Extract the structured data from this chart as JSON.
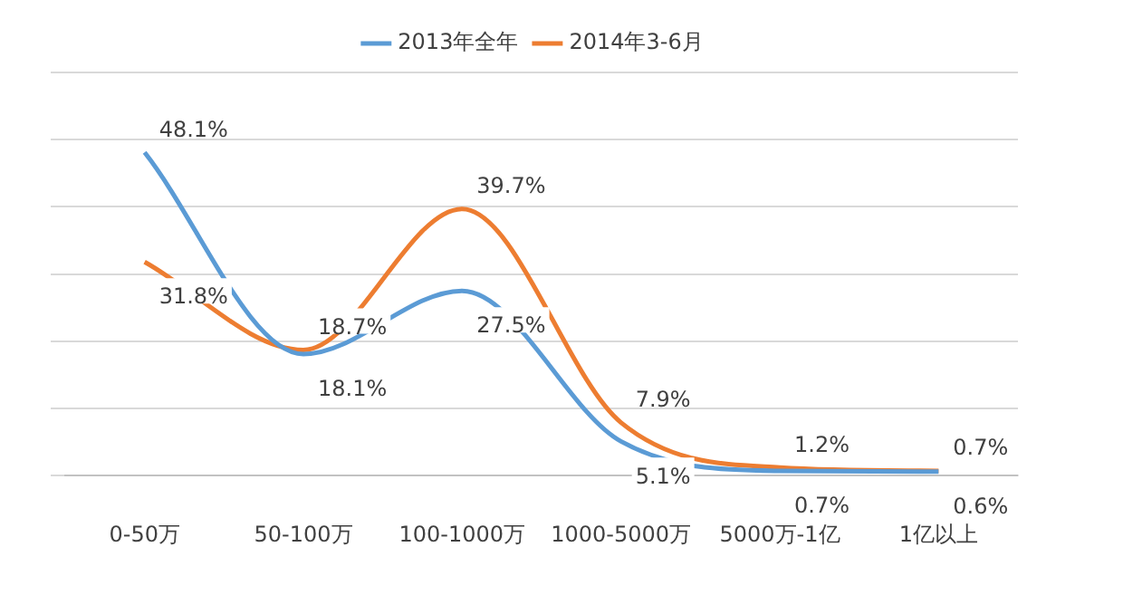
{
  "chart_data": {
    "type": "line",
    "categories": [
      "0-50万",
      "50-100万",
      "100-1000万",
      "1000-5000万",
      "5000万-1亿",
      "1亿以上"
    ],
    "series": [
      {
        "name": "2013年全年",
        "color": "#5b9bd5",
        "values": [
          48.1,
          18.1,
          27.5,
          5.1,
          0.7,
          0.6
        ],
        "value_labels": [
          "48.1%",
          "18.1%",
          "27.5%",
          "5.1%",
          "0.7%",
          "0.6%"
        ]
      },
      {
        "name": "2014年3-6月",
        "color": "#ed7d31",
        "values": [
          31.8,
          18.7,
          39.7,
          7.9,
          1.2,
          0.7
        ],
        "value_labels": [
          "31.8%",
          "18.7%",
          "39.7%",
          "7.9%",
          "1.2%",
          "0.7%"
        ]
      }
    ],
    "tick_labels": "x",
    "grid": "y",
    "legend": "top",
    "marker": "none",
    "line_style": "solid"
  }
}
